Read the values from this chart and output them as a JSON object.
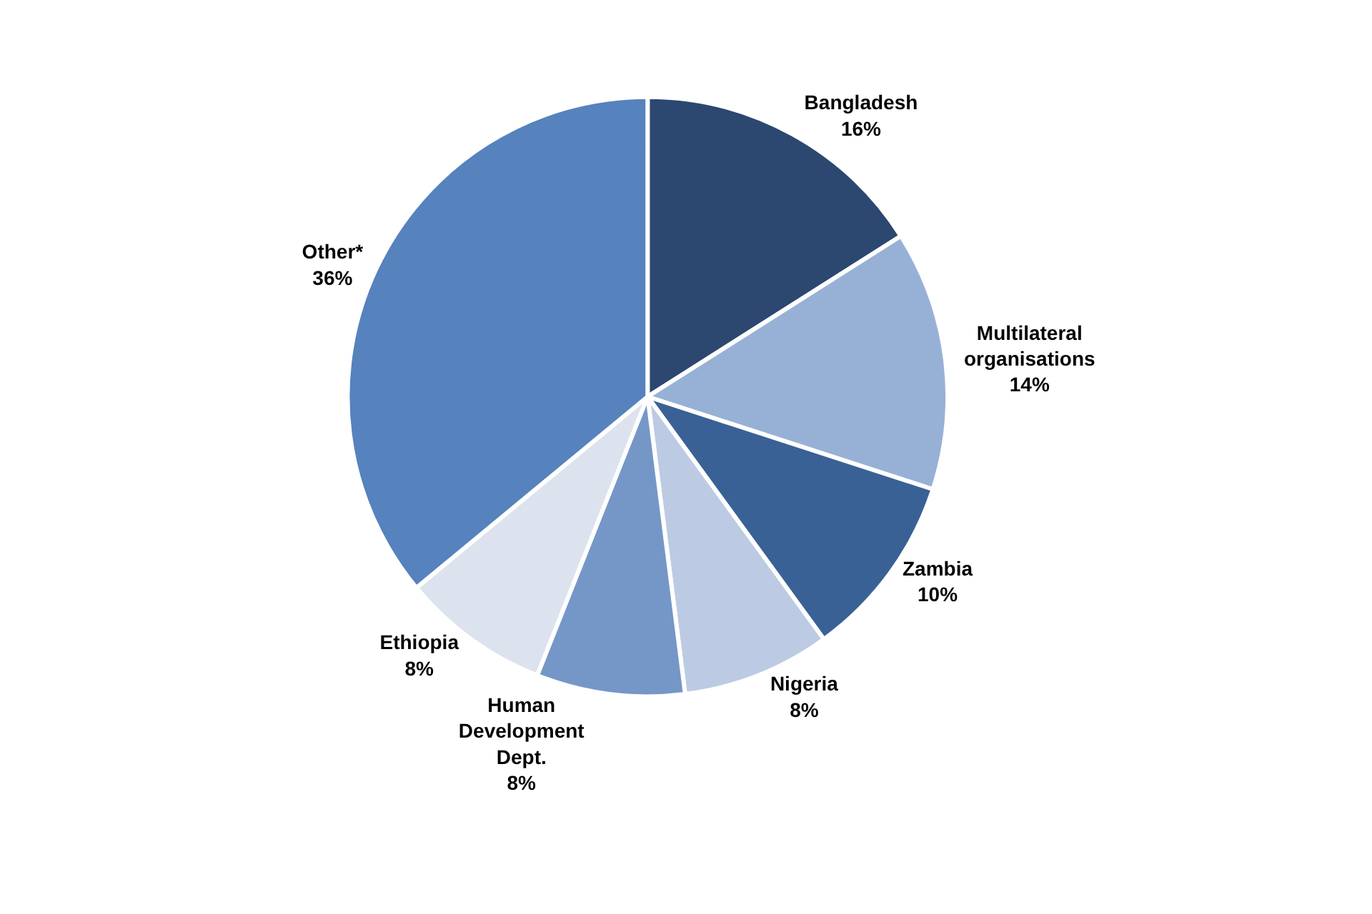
{
  "chart_data": {
    "type": "pie",
    "categories": [
      "Bangladesh",
      "Multilateral organisations",
      "Zambia",
      "Nigeria",
      "Human Development Dept.",
      "Ethiopia",
      "Other*"
    ],
    "values": [
      16,
      14,
      10,
      8,
      8,
      8,
      36
    ],
    "value_labels": [
      "16%",
      "14%",
      "10%",
      "8%",
      "8%",
      "8%",
      "36%"
    ],
    "colors": [
      "#2c4770",
      "#97b1d6",
      "#3a6195",
      "#bccbe3",
      "#7597c8",
      "#dce3ef",
      "#5682bd"
    ],
    "legend": false
  }
}
